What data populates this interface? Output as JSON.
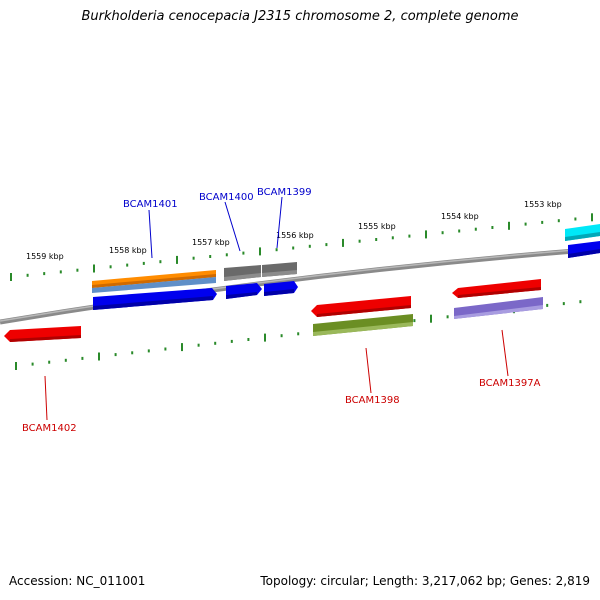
{
  "title": "Burkholderia cenocepacia J2315 chromosome 2, complete genome",
  "ruler": {
    "ticks": [
      "1553 kbp",
      "1554 kbp",
      "1555 kbp",
      "1556 kbp",
      "1557 kbp",
      "1558 kbp",
      "1559 kbp"
    ]
  },
  "genes": {
    "top": [
      {
        "name": "BCAM1401",
        "color": "#0000cc"
      },
      {
        "name": "BCAM1400",
        "color": "#0000cc"
      },
      {
        "name": "BCAM1399",
        "color": "#0000cc"
      }
    ],
    "bottom": [
      {
        "name": "BCAM1402",
        "color": "#cc0000"
      },
      {
        "name": "BCAM1398",
        "color": "#cc0000"
      },
      {
        "name": "BCAM1397A",
        "color": "#cc0000"
      }
    ]
  },
  "colors": {
    "forward_cds": "#0000ee",
    "reverse_cds": "#ee0000",
    "orange": "#ff8800",
    "steelblue": "#5f8fc8",
    "gray": "#707070",
    "olive": "#6b8e23",
    "purple": "#7b68c8",
    "cyan": "#00e0f0",
    "tick": "#2a8a2a",
    "backbone": "#808080"
  },
  "footer": {
    "accession": "Accession: NC_011001",
    "summary": "Topology: circular; Length: 3,217,062 bp; Genes: 2,819"
  }
}
